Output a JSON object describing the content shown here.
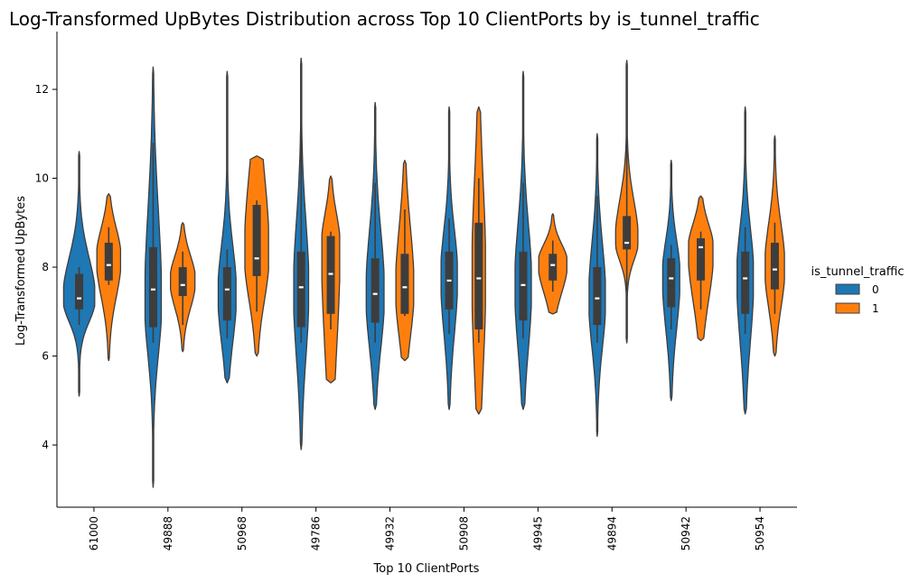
{
  "chart_data": {
    "type": "violin",
    "title": "Log-Transformed UpBytes Distribution across Top 10 ClientPorts by is_tunnel_traffic",
    "xlabel": "Top 10 ClientPorts",
    "ylabel": "Log-Transformed UpBytes",
    "ylim": [
      2.6,
      13.3
    ],
    "yticks": [
      4,
      6,
      8,
      10,
      12
    ],
    "categories": [
      "61000",
      "49888",
      "50968",
      "49786",
      "49932",
      "50908",
      "49945",
      "49894",
      "50942",
      "50954"
    ],
    "legend": {
      "title": "is_tunnel_traffic",
      "position": "right",
      "entries": [
        {
          "label": "0",
          "color": "#1f77b4"
        },
        {
          "label": "1",
          "color": "#ff7f0e"
        }
      ]
    },
    "series": [
      {
        "name": "0",
        "color": "#1f77b4",
        "stats": [
          {
            "min": 5.1,
            "max": 10.6,
            "q1": 7.05,
            "median": 7.3,
            "q3": 7.85,
            "wlo": 6.7,
            "whi": 8.0,
            "peak": 7.3,
            "width": 0.42
          },
          {
            "min": 3.05,
            "max": 12.5,
            "q1": 6.65,
            "median": 7.5,
            "q3": 8.45,
            "wlo": 6.3,
            "whi": 10.8,
            "peak": 7.2,
            "width": 0.22
          },
          {
            "min": 5.4,
            "max": 12.4,
            "q1": 6.8,
            "median": 7.5,
            "q3": 8.0,
            "wlo": 6.4,
            "whi": 8.4,
            "peak": 7.4,
            "width": 0.24
          },
          {
            "min": 3.9,
            "max": 12.7,
            "q1": 6.65,
            "median": 7.55,
            "q3": 8.35,
            "wlo": 6.3,
            "whi": 12.3,
            "peak": 7.5,
            "width": 0.2
          },
          {
            "min": 4.8,
            "max": 11.7,
            "q1": 6.75,
            "median": 7.4,
            "q3": 8.2,
            "wlo": 6.3,
            "whi": 9.9,
            "peak": 7.4,
            "width": 0.24
          },
          {
            "min": 4.8,
            "max": 11.6,
            "q1": 7.05,
            "median": 7.7,
            "q3": 8.35,
            "wlo": 6.5,
            "whi": 9.1,
            "peak": 7.8,
            "width": 0.22
          },
          {
            "min": 4.8,
            "max": 12.4,
            "q1": 6.8,
            "median": 7.6,
            "q3": 8.35,
            "wlo": 6.4,
            "whi": 9.9,
            "peak": 7.6,
            "width": 0.22
          },
          {
            "min": 4.2,
            "max": 11.0,
            "q1": 6.7,
            "median": 7.3,
            "q3": 8.0,
            "wlo": 6.3,
            "whi": 9.6,
            "peak": 7.3,
            "width": 0.22
          },
          {
            "min": 5.0,
            "max": 10.4,
            "q1": 7.1,
            "median": 7.75,
            "q3": 8.2,
            "wlo": 6.6,
            "whi": 8.5,
            "peak": 7.8,
            "width": 0.23
          },
          {
            "min": 4.7,
            "max": 11.6,
            "q1": 6.95,
            "median": 7.75,
            "q3": 8.35,
            "wlo": 6.5,
            "whi": 8.9,
            "peak": 7.8,
            "width": 0.22
          }
        ]
      },
      {
        "name": "1",
        "color": "#ff7f0e",
        "stats": [
          {
            "min": 5.9,
            "max": 9.65,
            "q1": 7.7,
            "median": 8.05,
            "q3": 8.55,
            "wlo": 7.6,
            "whi": 8.9,
            "peak": 8.2,
            "width": 0.32
          },
          {
            "min": 6.1,
            "max": 9.0,
            "q1": 7.35,
            "median": 7.6,
            "q3": 8.0,
            "wlo": 6.7,
            "whi": 8.35,
            "peak": 7.7,
            "width": 0.33
          },
          {
            "min": 6.0,
            "max": 10.5,
            "q1": 7.8,
            "median": 8.2,
            "q3": 9.4,
            "wlo": 7.0,
            "whi": 9.5,
            "peak": 8.3,
            "width": 0.32
          },
          {
            "min": 5.4,
            "max": 10.05,
            "q1": 6.95,
            "median": 7.85,
            "q3": 8.7,
            "wlo": 6.6,
            "whi": 8.8,
            "peak": 8.5,
            "width": 0.24
          },
          {
            "min": 5.9,
            "max": 10.4,
            "q1": 6.95,
            "median": 7.55,
            "q3": 8.3,
            "wlo": 6.9,
            "whi": 9.3,
            "peak": 7.5,
            "width": 0.24
          },
          {
            "min": 4.7,
            "max": 11.6,
            "q1": 6.6,
            "median": 7.75,
            "q3": 9.0,
            "wlo": 6.3,
            "whi": 10.0,
            "peak": 7.8,
            "width": 0.18
          },
          {
            "min": 6.95,
            "max": 9.2,
            "q1": 7.7,
            "median": 8.05,
            "q3": 8.3,
            "wlo": 7.45,
            "whi": 8.6,
            "peak": 8.1,
            "width": 0.38
          },
          {
            "min": 6.3,
            "max": 12.65,
            "q1": 8.4,
            "median": 8.55,
            "q3": 9.15,
            "wlo": 7.45,
            "whi": 12.0,
            "peak": 8.6,
            "width": 0.3
          },
          {
            "min": 6.35,
            "max": 9.6,
            "q1": 7.7,
            "median": 8.45,
            "q3": 8.65,
            "wlo": 7.05,
            "whi": 8.8,
            "peak": 8.4,
            "width": 0.33
          },
          {
            "min": 6.0,
            "max": 10.95,
            "q1": 7.5,
            "median": 7.95,
            "q3": 8.55,
            "wlo": 6.95,
            "whi": 9.0,
            "peak": 8.0,
            "width": 0.26
          }
        ]
      }
    ]
  }
}
